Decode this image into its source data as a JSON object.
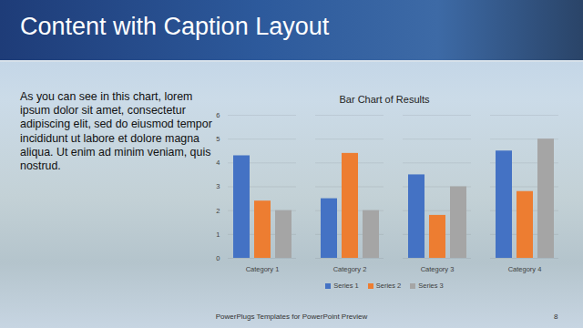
{
  "slide_title": "Content with Caption Layout",
  "caption": "As you can see in this chart, lorem ipsum dolor sit amet, consectetur adipiscing elit, sed do eiusmod tempor incididunt ut labore et dolore magna aliqua. Ut enim ad minim veniam, quis nostrud.",
  "footer": "PowerPlugs Templates for PowerPoint Preview",
  "page_number": 8,
  "chart_data": {
    "type": "bar",
    "title": "Bar Chart of Results",
    "categories": [
      "Category 1",
      "Category 2",
      "Category 3",
      "Category 4"
    ],
    "series": [
      {
        "name": "Series 1",
        "color": "#4472c4",
        "values": [
          4.3,
          2.5,
          3.5,
          4.5
        ]
      },
      {
        "name": "Series 2",
        "color": "#ed7d31",
        "values": [
          2.4,
          4.4,
          1.8,
          2.8
        ]
      },
      {
        "name": "Series 3",
        "color": "#a5a5a5",
        "values": [
          2,
          2,
          3,
          5
        ]
      }
    ],
    "ylim": [
      0,
      6
    ],
    "yticks": [
      0,
      1,
      2,
      3,
      4,
      5,
      6
    ],
    "grid": true,
    "legend": "bottom"
  }
}
